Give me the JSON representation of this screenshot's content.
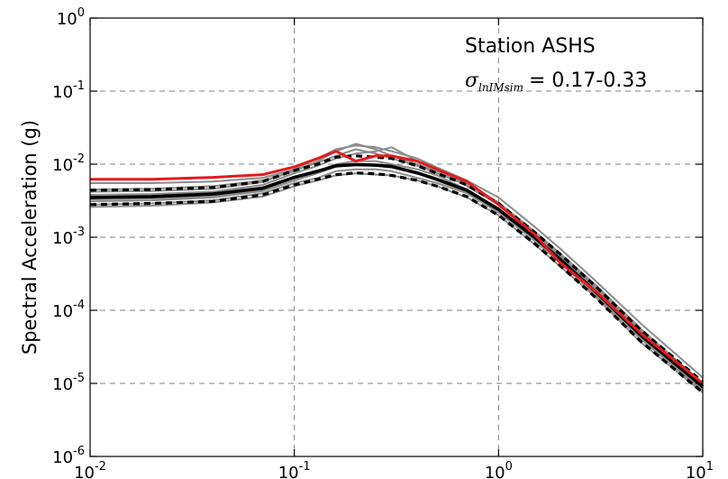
{
  "chart_data": {
    "type": "line",
    "title": "",
    "xlabel": "",
    "ylabel": "Spectral Acceleration (g)",
    "x_scale": "log",
    "y_scale": "log",
    "xlim": [
      0.01,
      10
    ],
    "ylim": [
      1e-06,
      1
    ],
    "grid": true,
    "x_ticks": [
      {
        "value": 0.01,
        "base": "10",
        "exp": "-2"
      },
      {
        "value": 0.1,
        "base": "10",
        "exp": "-1"
      },
      {
        "value": 1,
        "base": "10",
        "exp": "0"
      },
      {
        "value": 10,
        "base": "10",
        "exp": "1"
      }
    ],
    "y_ticks": [
      {
        "value": 1e-06,
        "base": "10",
        "exp": "-6"
      },
      {
        "value": 1e-05,
        "base": "10",
        "exp": "-5"
      },
      {
        "value": 0.0001,
        "base": "10",
        "exp": "-4"
      },
      {
        "value": 0.001,
        "base": "10",
        "exp": "-3"
      },
      {
        "value": 0.01,
        "base": "10",
        "exp": "-2"
      },
      {
        "value": 0.1,
        "base": "10",
        "exp": "-1"
      },
      {
        "value": 1,
        "base": "10",
        "exp": "0"
      }
    ],
    "annotation": {
      "station": "Station ASHS",
      "sigma_symbol": "σ",
      "sigma_subscript": "lnIMsim",
      "sigma_value": "= 0.17-0.33"
    },
    "colors": {
      "simulations": "#8c8c8c",
      "median": "#000000",
      "bounds": "#000000",
      "recorded": "#e41a1c",
      "grid": "#7f7f7f"
    },
    "series": [
      {
        "role": "simulation",
        "x": [
          0.01,
          0.02,
          0.04,
          0.07,
          0.1,
          0.13,
          0.16,
          0.2,
          0.25,
          0.3,
          0.4,
          0.5,
          0.7,
          1,
          1.5,
          2,
          3,
          5,
          10
        ],
        "y": [
          0.0055,
          0.0055,
          0.0058,
          0.0065,
          0.0085,
          0.012,
          0.016,
          0.018,
          0.017,
          0.015,
          0.012,
          0.009,
          0.006,
          0.0035,
          0.0014,
          0.0007,
          0.00025,
          6.5e-05,
          1.2e-05
        ]
      },
      {
        "role": "simulation",
        "x": [
          0.01,
          0.02,
          0.04,
          0.07,
          0.1,
          0.13,
          0.16,
          0.2,
          0.25,
          0.3,
          0.4,
          0.5,
          0.7,
          1,
          1.5,
          2,
          3,
          5,
          10
        ],
        "y": [
          0.0045,
          0.0046,
          0.005,
          0.006,
          0.008,
          0.011,
          0.015,
          0.019,
          0.016,
          0.013,
          0.01,
          0.008,
          0.0055,
          0.003,
          0.0012,
          0.0006,
          0.00022,
          5.5e-05,
          1e-05
        ]
      },
      {
        "role": "simulation",
        "x": [
          0.01,
          0.02,
          0.04,
          0.07,
          0.1,
          0.13,
          0.16,
          0.2,
          0.25,
          0.3,
          0.4,
          0.5,
          0.7,
          1,
          1.5,
          2,
          3,
          5,
          10
        ],
        "y": [
          0.0038,
          0.0039,
          0.0042,
          0.0052,
          0.0075,
          0.0095,
          0.012,
          0.014,
          0.015,
          0.017,
          0.011,
          0.0085,
          0.005,
          0.0028,
          0.0011,
          0.00055,
          0.0002,
          5e-05,
          9e-06
        ]
      },
      {
        "role": "simulation",
        "x": [
          0.01,
          0.02,
          0.04,
          0.07,
          0.1,
          0.13,
          0.16,
          0.2,
          0.25,
          0.3,
          0.4,
          0.5,
          0.7,
          1,
          1.5,
          2,
          3,
          5,
          10
        ],
        "y": [
          0.0033,
          0.0034,
          0.0036,
          0.0045,
          0.0065,
          0.008,
          0.01,
          0.011,
          0.011,
          0.01,
          0.0085,
          0.007,
          0.0045,
          0.0025,
          0.001,
          0.0005,
          0.00018,
          4.5e-05,
          9e-06
        ]
      },
      {
        "role": "simulation",
        "x": [
          0.01,
          0.02,
          0.04,
          0.07,
          0.1,
          0.13,
          0.16,
          0.2,
          0.25,
          0.3,
          0.4,
          0.5,
          0.7,
          1,
          1.5,
          2,
          3,
          5,
          10
        ],
        "y": [
          0.0028,
          0.0029,
          0.0032,
          0.004,
          0.0055,
          0.0065,
          0.008,
          0.0085,
          0.0085,
          0.008,
          0.0065,
          0.0055,
          0.004,
          0.0022,
          0.0009,
          0.00045,
          0.00016,
          4e-05,
          8e-06
        ]
      },
      {
        "role": "simulation",
        "x": [
          0.01,
          0.02,
          0.04,
          0.07,
          0.1,
          0.13,
          0.16,
          0.2,
          0.25,
          0.3,
          0.4,
          0.5,
          0.7,
          1,
          1.5,
          2,
          3,
          5,
          10
        ],
        "y": [
          0.0026,
          0.0027,
          0.003,
          0.0036,
          0.005,
          0.006,
          0.007,
          0.0075,
          0.0072,
          0.007,
          0.006,
          0.005,
          0.0035,
          0.002,
          0.0008,
          0.0004,
          0.00015,
          3.6e-05,
          7.5e-06
        ]
      },
      {
        "role": "simulation",
        "x": [
          0.01,
          0.02,
          0.04,
          0.07,
          0.1,
          0.13,
          0.16,
          0.2,
          0.25,
          0.3,
          0.4,
          0.5,
          0.7,
          1,
          1.5,
          2,
          3,
          5,
          10
        ],
        "y": [
          0.0042,
          0.0043,
          0.0046,
          0.0057,
          0.0082,
          0.0105,
          0.013,
          0.016,
          0.014,
          0.012,
          0.0095,
          0.0075,
          0.0052,
          0.0029,
          0.00115,
          0.00058,
          0.00021,
          5.2e-05,
          1e-05
        ]
      },
      {
        "role": "simulation",
        "x": [
          0.01,
          0.02,
          0.04,
          0.07,
          0.1,
          0.13,
          0.16,
          0.2,
          0.25,
          0.3,
          0.4,
          0.5,
          0.7,
          1,
          1.5,
          2,
          3,
          5,
          10
        ],
        "y": [
          0.0031,
          0.0032,
          0.0035,
          0.0043,
          0.006,
          0.0075,
          0.0092,
          0.0098,
          0.0095,
          0.009,
          0.0075,
          0.006,
          0.0042,
          0.0024,
          0.00095,
          0.00048,
          0.00017,
          4.2e-05,
          8.5e-06
        ]
      },
      {
        "role": "bound",
        "x": [
          0.01,
          0.02,
          0.04,
          0.07,
          0.1,
          0.13,
          0.16,
          0.2,
          0.25,
          0.3,
          0.4,
          0.5,
          0.7,
          1,
          1.5,
          2,
          3,
          5,
          10
        ],
        "y": [
          0.0044,
          0.0045,
          0.0048,
          0.0058,
          0.0082,
          0.01,
          0.0125,
          0.013,
          0.0125,
          0.012,
          0.0095,
          0.0075,
          0.0052,
          0.0029,
          0.00118,
          0.00059,
          0.00021,
          5.3e-05,
          1.05e-05
        ]
      },
      {
        "role": "bound",
        "x": [
          0.01,
          0.02,
          0.04,
          0.07,
          0.1,
          0.13,
          0.16,
          0.2,
          0.25,
          0.3,
          0.4,
          0.5,
          0.7,
          1,
          1.5,
          2,
          3,
          5,
          10
        ],
        "y": [
          0.0028,
          0.0029,
          0.0031,
          0.0038,
          0.0052,
          0.0062,
          0.0072,
          0.0076,
          0.0074,
          0.007,
          0.006,
          0.005,
          0.0036,
          0.002,
          0.00082,
          0.00041,
          0.000148,
          3.7e-05,
          7.5e-06
        ]
      },
      {
        "role": "median",
        "x": [
          0.01,
          0.02,
          0.04,
          0.07,
          0.1,
          0.13,
          0.16,
          0.2,
          0.25,
          0.3,
          0.4,
          0.5,
          0.7,
          1,
          1.5,
          2,
          3,
          5,
          10
        ],
        "y": [
          0.0035,
          0.0036,
          0.0039,
          0.0047,
          0.0066,
          0.008,
          0.0095,
          0.0099,
          0.0097,
          0.0093,
          0.0076,
          0.0062,
          0.0044,
          0.0024,
          0.001,
          0.0005,
          0.000178,
          4.5e-05,
          9e-06
        ]
      },
      {
        "role": "recorded",
        "x": [
          0.01,
          0.02,
          0.04,
          0.07,
          0.1,
          0.13,
          0.16,
          0.2,
          0.25,
          0.3,
          0.4,
          0.5,
          0.7,
          1,
          1.5,
          2,
          3,
          5,
          10
        ],
        "y": [
          0.0062,
          0.0062,
          0.0066,
          0.0072,
          0.0092,
          0.012,
          0.015,
          0.011,
          0.013,
          0.013,
          0.011,
          0.0085,
          0.0058,
          0.0028,
          0.0011,
          0.00045,
          0.00018,
          4.8e-05,
          1e-05
        ]
      }
    ]
  }
}
